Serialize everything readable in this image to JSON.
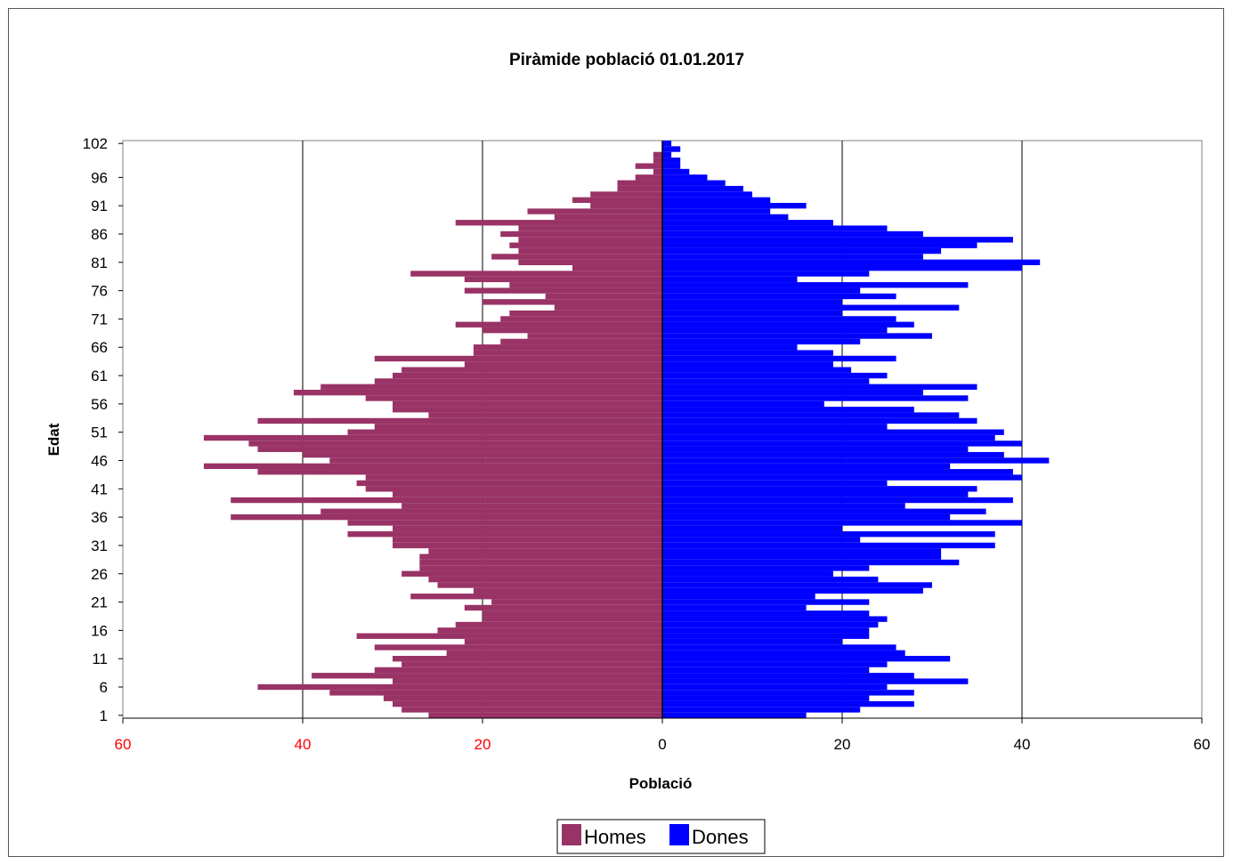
{
  "chart_data": {
    "type": "bar",
    "orientation": "horizontal",
    "title": "Piràmide població 01.01.2017",
    "xlabel": "Població",
    "ylabel": "Edat",
    "xlim": [
      -60,
      60
    ],
    "x_ticks": [
      -60,
      -40,
      -20,
      0,
      20,
      40,
      60
    ],
    "x_tick_labels": [
      "60",
      "40",
      "20",
      "0",
      "20",
      "40",
      "60"
    ],
    "y_tick_labels": [
      "102",
      "96",
      "91",
      "86",
      "81",
      "76",
      "71",
      "66",
      "61",
      "56",
      "51",
      "46",
      "41",
      "36",
      "31",
      "26",
      "21",
      "16",
      "11",
      "6",
      "1"
    ],
    "grid": "vertical",
    "legend_position": "bottom",
    "ages": [
      1,
      2,
      3,
      4,
      5,
      6,
      7,
      8,
      9,
      10,
      11,
      12,
      13,
      14,
      15,
      16,
      17,
      18,
      19,
      20,
      21,
      22,
      23,
      24,
      25,
      26,
      27,
      28,
      29,
      30,
      31,
      32,
      33,
      34,
      35,
      36,
      37,
      38,
      39,
      40,
      41,
      42,
      43,
      44,
      45,
      46,
      47,
      48,
      49,
      50,
      51,
      52,
      53,
      54,
      55,
      56,
      57,
      58,
      59,
      60,
      61,
      62,
      63,
      64,
      65,
      66,
      67,
      68,
      69,
      70,
      71,
      72,
      73,
      74,
      75,
      76,
      77,
      78,
      79,
      80,
      81,
      82,
      83,
      84,
      85,
      86,
      87,
      88,
      89,
      90,
      91,
      92,
      93,
      94,
      95,
      96,
      97,
      98,
      99,
      100,
      101,
      102
    ],
    "series": [
      {
        "name": "Homes",
        "color": "#993366",
        "values": [
          26,
          29,
          30,
          31,
          37,
          45,
          30,
          39,
          32,
          29,
          30,
          24,
          32,
          22,
          34,
          25,
          23,
          20,
          20,
          22,
          19,
          28,
          21,
          25,
          26,
          29,
          27,
          27,
          27,
          26,
          30,
          30,
          35,
          30,
          35,
          48,
          38,
          29,
          48,
          30,
          33,
          34,
          33,
          45,
          51,
          37,
          40,
          45,
          46,
          51,
          35,
          32,
          45,
          26,
          30,
          30,
          33,
          41,
          38,
          32,
          30,
          29,
          22,
          32,
          21,
          21,
          18,
          15,
          20,
          23,
          18,
          17,
          12,
          20,
          13,
          22,
          17,
          22,
          28,
          10,
          16,
          19,
          16,
          17,
          16,
          18,
          16,
          23,
          12,
          15,
          8,
          10,
          8,
          5,
          5,
          3,
          1,
          3,
          1,
          1,
          0,
          0
        ],
        "label_color": "#ff0000"
      },
      {
        "name": "Dones",
        "color": "#0000ff",
        "values": [
          16,
          22,
          28,
          23,
          28,
          25,
          34,
          28,
          23,
          25,
          32,
          27,
          26,
          20,
          23,
          23,
          24,
          25,
          23,
          16,
          23,
          17,
          29,
          30,
          24,
          19,
          23,
          33,
          31,
          31,
          37,
          22,
          37,
          20,
          40,
          32,
          36,
          27,
          39,
          34,
          35,
          25,
          40,
          39,
          32,
          43,
          38,
          34,
          40,
          37,
          38,
          25,
          35,
          33,
          28,
          18,
          34,
          29,
          35,
          23,
          25,
          21,
          19,
          26,
          19,
          15,
          22,
          30,
          25,
          28,
          26,
          20,
          33,
          20,
          26,
          22,
          34,
          15,
          23,
          40,
          42,
          29,
          31,
          35,
          39,
          29,
          25,
          19,
          14,
          12,
          16,
          12,
          10,
          9,
          7,
          5,
          3,
          2,
          2,
          1,
          2,
          1
        ]
      }
    ]
  }
}
